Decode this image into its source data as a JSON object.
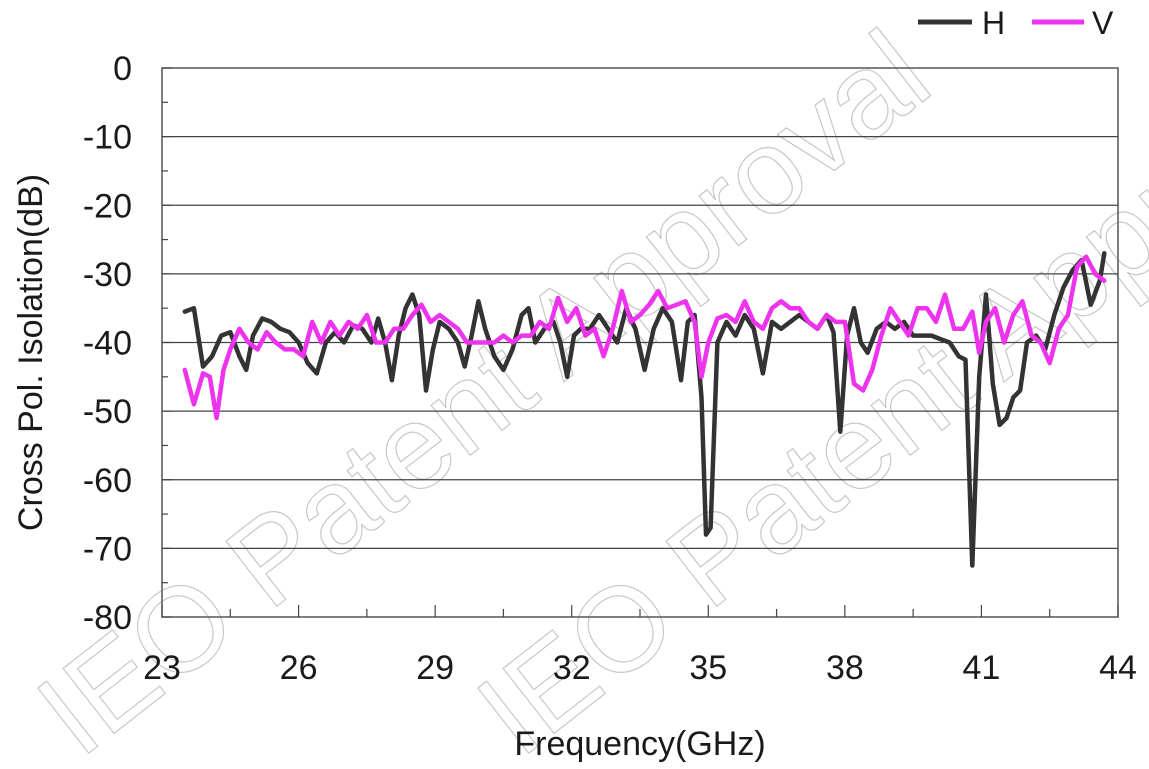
{
  "watermark": "IEO Patent Approval",
  "chart_data": {
    "type": "line",
    "title": "",
    "xlabel": "Frequency(GHz)",
    "ylabel": "Cross Pol. Isolation(dB)",
    "xlim": [
      23,
      44
    ],
    "ylim": [
      -80,
      0
    ],
    "x_ticks": [
      23,
      26,
      29,
      32,
      35,
      38,
      41,
      44
    ],
    "y_ticks": [
      0,
      -10,
      -20,
      -30,
      -40,
      -50,
      -60,
      -70,
      -80
    ],
    "grid": "horizontal",
    "legend": "top-right",
    "series": [
      {
        "name": "H",
        "color": "#333333",
        "points": [
          [
            23.5,
            -35.5
          ],
          [
            23.7,
            -35
          ],
          [
            23.9,
            -43.5
          ],
          [
            24.1,
            -42
          ],
          [
            24.3,
            -39
          ],
          [
            24.5,
            -38.5
          ],
          [
            24.7,
            -42
          ],
          [
            24.85,
            -44
          ],
          [
            25.0,
            -39
          ],
          [
            25.2,
            -36.5
          ],
          [
            25.4,
            -37
          ],
          [
            25.6,
            -38
          ],
          [
            25.8,
            -38.5
          ],
          [
            26.0,
            -40
          ],
          [
            26.2,
            -43
          ],
          [
            26.4,
            -44.5
          ],
          [
            26.6,
            -40
          ],
          [
            26.8,
            -38.5
          ],
          [
            27.0,
            -40
          ],
          [
            27.2,
            -37.5
          ],
          [
            27.4,
            -38
          ],
          [
            27.6,
            -40
          ],
          [
            27.75,
            -36.5
          ],
          [
            27.9,
            -40
          ],
          [
            28.05,
            -45.5
          ],
          [
            28.2,
            -39
          ],
          [
            28.35,
            -35
          ],
          [
            28.5,
            -33
          ],
          [
            28.65,
            -36
          ],
          [
            28.8,
            -47
          ],
          [
            28.95,
            -41
          ],
          [
            29.1,
            -37
          ],
          [
            29.3,
            -38
          ],
          [
            29.5,
            -40
          ],
          [
            29.65,
            -43.5
          ],
          [
            29.8,
            -39
          ],
          [
            29.95,
            -34
          ],
          [
            30.1,
            -38
          ],
          [
            30.3,
            -42
          ],
          [
            30.5,
            -44
          ],
          [
            30.7,
            -41
          ],
          [
            30.9,
            -36
          ],
          [
            31.05,
            -35
          ],
          [
            31.2,
            -40
          ],
          [
            31.4,
            -38
          ],
          [
            31.6,
            -37
          ],
          [
            31.75,
            -40
          ],
          [
            31.9,
            -45
          ],
          [
            32.05,
            -39
          ],
          [
            32.2,
            -38
          ],
          [
            32.4,
            -38
          ],
          [
            32.6,
            -36
          ],
          [
            32.8,
            -38
          ],
          [
            33.0,
            -40
          ],
          [
            33.2,
            -35
          ],
          [
            33.4,
            -38
          ],
          [
            33.6,
            -44
          ],
          [
            33.8,
            -38
          ],
          [
            34.0,
            -35
          ],
          [
            34.2,
            -37
          ],
          [
            34.4,
            -45.5
          ],
          [
            34.55,
            -37
          ],
          [
            34.7,
            -36
          ],
          [
            34.85,
            -48
          ],
          [
            34.95,
            -68
          ],
          [
            35.05,
            -67
          ],
          [
            35.2,
            -40
          ],
          [
            35.4,
            -37
          ],
          [
            35.6,
            -39
          ],
          [
            35.8,
            -36
          ],
          [
            36.0,
            -38
          ],
          [
            36.2,
            -44.5
          ],
          [
            36.4,
            -37
          ],
          [
            36.6,
            -38
          ],
          [
            36.8,
            -37
          ],
          [
            37.0,
            -36
          ],
          [
            37.2,
            -37
          ],
          [
            37.4,
            -38
          ],
          [
            37.6,
            -36
          ],
          [
            37.75,
            -38.5
          ],
          [
            37.9,
            -53
          ],
          [
            38.05,
            -39
          ],
          [
            38.2,
            -35
          ],
          [
            38.35,
            -40
          ],
          [
            38.5,
            -41.5
          ],
          [
            38.7,
            -38
          ],
          [
            38.9,
            -37
          ],
          [
            39.1,
            -38
          ],
          [
            39.3,
            -37
          ],
          [
            39.5,
            -39
          ],
          [
            39.7,
            -39
          ],
          [
            39.9,
            -39
          ],
          [
            40.1,
            -39.5
          ],
          [
            40.3,
            -40
          ],
          [
            40.5,
            -42
          ],
          [
            40.65,
            -42.5
          ],
          [
            40.8,
            -72.5
          ],
          [
            40.95,
            -45
          ],
          [
            41.1,
            -33
          ],
          [
            41.25,
            -46
          ],
          [
            41.4,
            -52
          ],
          [
            41.55,
            -51
          ],
          [
            41.7,
            -48
          ],
          [
            41.85,
            -47
          ],
          [
            42.0,
            -40
          ],
          [
            42.2,
            -39
          ],
          [
            42.4,
            -41
          ],
          [
            42.6,
            -36
          ],
          [
            42.8,
            -32
          ],
          [
            43.0,
            -29.5
          ],
          [
            43.2,
            -28
          ],
          [
            43.4,
            -34.5
          ],
          [
            43.6,
            -31
          ],
          [
            43.7,
            -27
          ]
        ]
      },
      {
        "name": "V",
        "color": "#ee33ee",
        "points": [
          [
            23.5,
            -44
          ],
          [
            23.7,
            -49
          ],
          [
            23.9,
            -44.5
          ],
          [
            24.05,
            -45
          ],
          [
            24.2,
            -51
          ],
          [
            24.35,
            -44
          ],
          [
            24.5,
            -41
          ],
          [
            24.7,
            -38
          ],
          [
            24.9,
            -40
          ],
          [
            25.1,
            -41
          ],
          [
            25.3,
            -38.5
          ],
          [
            25.5,
            -40
          ],
          [
            25.7,
            -41
          ],
          [
            25.9,
            -41
          ],
          [
            26.1,
            -42
          ],
          [
            26.3,
            -37
          ],
          [
            26.5,
            -40
          ],
          [
            26.7,
            -37
          ],
          [
            26.9,
            -39
          ],
          [
            27.1,
            -37
          ],
          [
            27.3,
            -38
          ],
          [
            27.5,
            -36
          ],
          [
            27.7,
            -40
          ],
          [
            27.9,
            -40
          ],
          [
            28.1,
            -38
          ],
          [
            28.3,
            -38
          ],
          [
            28.5,
            -36
          ],
          [
            28.7,
            -34.5
          ],
          [
            28.9,
            -37
          ],
          [
            29.1,
            -36
          ],
          [
            29.3,
            -37
          ],
          [
            29.5,
            -38
          ],
          [
            29.7,
            -40
          ],
          [
            29.9,
            -40
          ],
          [
            30.1,
            -40
          ],
          [
            30.3,
            -40
          ],
          [
            30.5,
            -39
          ],
          [
            30.7,
            -40
          ],
          [
            30.9,
            -39
          ],
          [
            31.1,
            -39
          ],
          [
            31.3,
            -37
          ],
          [
            31.5,
            -38
          ],
          [
            31.7,
            -33.5
          ],
          [
            31.9,
            -37
          ],
          [
            32.1,
            -35
          ],
          [
            32.3,
            -39
          ],
          [
            32.5,
            -38
          ],
          [
            32.7,
            -42
          ],
          [
            32.9,
            -38
          ],
          [
            33.1,
            -32.5
          ],
          [
            33.3,
            -37
          ],
          [
            33.5,
            -36
          ],
          [
            33.7,
            -34.5
          ],
          [
            33.9,
            -32.5
          ],
          [
            34.1,
            -35
          ],
          [
            34.3,
            -34.5
          ],
          [
            34.5,
            -34
          ],
          [
            34.7,
            -37
          ],
          [
            34.85,
            -45
          ],
          [
            35.0,
            -40
          ],
          [
            35.2,
            -36.5
          ],
          [
            35.4,
            -36
          ],
          [
            35.6,
            -37
          ],
          [
            35.8,
            -34
          ],
          [
            36.0,
            -37
          ],
          [
            36.2,
            -38
          ],
          [
            36.4,
            -35
          ],
          [
            36.6,
            -34
          ],
          [
            36.8,
            -35
          ],
          [
            37.0,
            -35
          ],
          [
            37.2,
            -37
          ],
          [
            37.4,
            -38
          ],
          [
            37.6,
            -36
          ],
          [
            37.8,
            -37
          ],
          [
            38.0,
            -37
          ],
          [
            38.2,
            -46
          ],
          [
            38.4,
            -47
          ],
          [
            38.6,
            -44
          ],
          [
            38.8,
            -39
          ],
          [
            39.0,
            -35
          ],
          [
            39.2,
            -37
          ],
          [
            39.4,
            -39
          ],
          [
            39.6,
            -35
          ],
          [
            39.8,
            -35
          ],
          [
            40.0,
            -37
          ],
          [
            40.2,
            -33
          ],
          [
            40.4,
            -38
          ],
          [
            40.6,
            -38
          ],
          [
            40.8,
            -35.5
          ],
          [
            40.95,
            -41.5
          ],
          [
            41.1,
            -37
          ],
          [
            41.3,
            -35
          ],
          [
            41.5,
            -40
          ],
          [
            41.7,
            -36
          ],
          [
            41.9,
            -34
          ],
          [
            42.1,
            -39
          ],
          [
            42.3,
            -40
          ],
          [
            42.5,
            -43
          ],
          [
            42.7,
            -38
          ],
          [
            42.9,
            -36
          ],
          [
            43.1,
            -29
          ],
          [
            43.3,
            -27.5
          ],
          [
            43.5,
            -30
          ],
          [
            43.7,
            -31
          ]
        ]
      }
    ]
  }
}
